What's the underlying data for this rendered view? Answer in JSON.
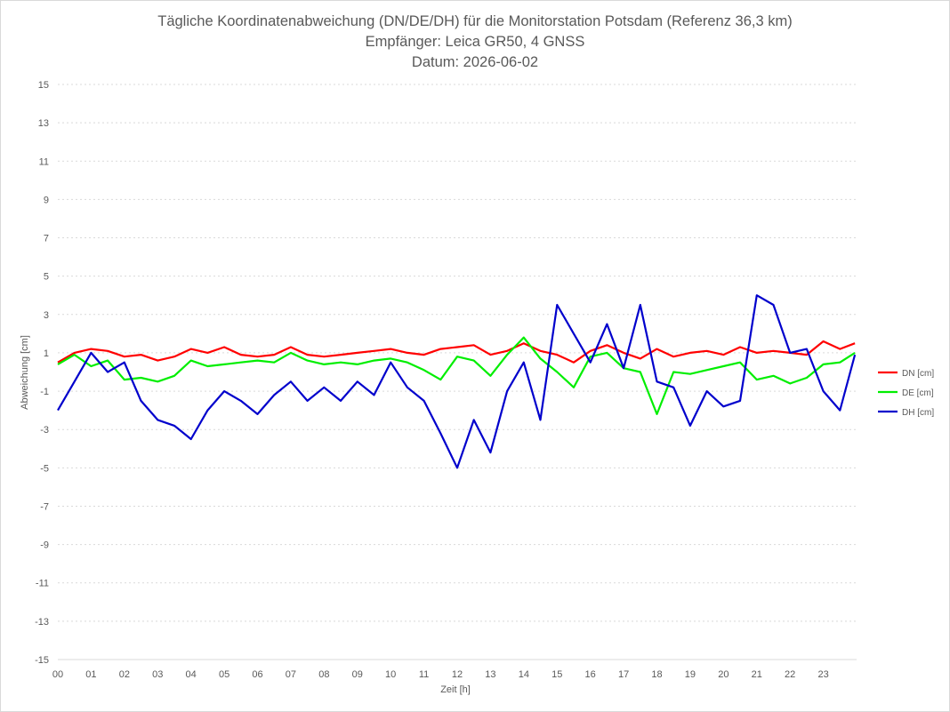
{
  "chart_data": {
    "type": "line",
    "title_lines": [
      "Tägliche Koordinatenabweichung (DN/DE/DH) für die Monitorstation Potsdam (Referenz 36,3 km)",
      "Empfänger: Leica GR50, 4 GNSS",
      "Datum: 2026-06-02"
    ],
    "xlabel": "Zeit [h]",
    "ylabel": "Abweichung [cm]",
    "xlim": [
      0,
      24
    ],
    "ylim": [
      -15,
      15
    ],
    "x_ticks": [
      "00",
      "01",
      "02",
      "03",
      "04",
      "05",
      "06",
      "07",
      "08",
      "09",
      "10",
      "11",
      "12",
      "13",
      "14",
      "15",
      "16",
      "17",
      "18",
      "19",
      "20",
      "21",
      "22",
      "23"
    ],
    "y_ticks": [
      15,
      13,
      11,
      9,
      7,
      5,
      3,
      1,
      -1,
      -3,
      -5,
      -7,
      -9,
      -11,
      -13,
      -15
    ],
    "grid": true,
    "legend_position": "right",
    "colors": {
      "DN": "#ff0000",
      "DE": "#00ee00",
      "DH": "#0000cc"
    },
    "series": [
      {
        "name": "DN [cm]",
        "color": "#ff0000",
        "x": [
          0.0,
          0.5,
          1.0,
          1.5,
          2.0,
          2.5,
          3.0,
          3.5,
          4.0,
          4.5,
          5.0,
          5.5,
          6.0,
          6.5,
          7.0,
          7.5,
          8.0,
          8.5,
          9.0,
          9.5,
          10.0,
          10.5,
          11.0,
          11.5,
          12.0,
          12.5,
          13.0,
          13.5,
          14.0,
          14.5,
          15.0,
          15.5,
          16.0,
          16.5,
          17.0,
          17.5,
          18.0,
          18.5,
          19.0,
          19.5,
          20.0,
          20.5,
          21.0,
          21.5,
          22.0,
          22.5,
          23.0,
          23.5,
          23.95
        ],
        "values": [
          0.5,
          1.0,
          1.2,
          1.1,
          0.8,
          0.9,
          0.6,
          0.8,
          1.2,
          1.0,
          1.3,
          0.9,
          0.8,
          0.9,
          1.3,
          0.9,
          0.8,
          0.9,
          1.0,
          1.1,
          1.2,
          1.0,
          0.9,
          1.2,
          1.3,
          1.4,
          0.9,
          1.1,
          1.5,
          1.1,
          0.9,
          0.5,
          1.1,
          1.4,
          1.0,
          0.7,
          1.2,
          0.8,
          1.0,
          1.1,
          0.9,
          1.3,
          1.0,
          1.1,
          1.0,
          0.9,
          1.6,
          1.2,
          1.5
        ]
      },
      {
        "name": "DE [cm]",
        "color": "#00ee00",
        "x": [
          0.0,
          0.5,
          1.0,
          1.5,
          2.0,
          2.5,
          3.0,
          3.5,
          4.0,
          4.5,
          5.0,
          5.5,
          6.0,
          6.5,
          7.0,
          7.5,
          8.0,
          8.5,
          9.0,
          9.5,
          10.0,
          10.5,
          11.0,
          11.5,
          12.0,
          12.5,
          13.0,
          13.5,
          14.0,
          14.5,
          15.0,
          15.5,
          16.0,
          16.5,
          17.0,
          17.5,
          18.0,
          18.5,
          19.0,
          19.5,
          20.0,
          20.5,
          21.0,
          21.5,
          22.0,
          22.5,
          23.0,
          23.5,
          23.95
        ],
        "values": [
          0.4,
          0.9,
          0.3,
          0.6,
          -0.4,
          -0.3,
          -0.5,
          -0.2,
          0.6,
          0.3,
          0.4,
          0.5,
          0.6,
          0.5,
          1.0,
          0.6,
          0.4,
          0.5,
          0.4,
          0.6,
          0.7,
          0.5,
          0.1,
          -0.4,
          0.8,
          0.6,
          -0.2,
          0.9,
          1.8,
          0.7,
          0.0,
          -0.8,
          0.8,
          1.0,
          0.2,
          0.0,
          -2.2,
          0.0,
          -0.1,
          0.1,
          0.3,
          0.5,
          -0.4,
          -0.2,
          -0.6,
          -0.3,
          0.4,
          0.5,
          1.0
        ]
      },
      {
        "name": "DH [cm]",
        "color": "#0000cc",
        "x": [
          0.0,
          0.5,
          1.0,
          1.5,
          2.0,
          2.5,
          3.0,
          3.5,
          4.0,
          4.5,
          5.0,
          5.5,
          6.0,
          6.5,
          7.0,
          7.5,
          8.0,
          8.5,
          9.0,
          9.5,
          10.0,
          10.5,
          11.0,
          11.5,
          12.0,
          12.5,
          13.0,
          13.5,
          14.0,
          14.5,
          15.0,
          15.5,
          16.0,
          16.5,
          17.0,
          17.5,
          18.0,
          18.5,
          19.0,
          19.5,
          20.0,
          20.5,
          21.0,
          21.5,
          22.0,
          22.5,
          23.0,
          23.5,
          23.95
        ],
        "values": [
          -2.0,
          -0.5,
          1.0,
          0.0,
          0.5,
          -1.5,
          -2.5,
          -2.8,
          -3.5,
          -2.0,
          -1.0,
          -1.5,
          -2.2,
          -1.2,
          -0.5,
          -1.5,
          -0.8,
          -1.5,
          -0.5,
          -1.2,
          0.5,
          -0.8,
          -1.5,
          -3.2,
          -5.0,
          -2.5,
          -4.2,
          -1.0,
          0.5,
          -2.5,
          3.5,
          2.0,
          0.5,
          2.5,
          0.2,
          3.5,
          -0.5,
          -0.8,
          -2.8,
          -1.0,
          -1.8,
          -1.5,
          4.0,
          3.5,
          1.0,
          1.2,
          -1.0,
          -2.0,
          0.9
        ]
      }
    ]
  }
}
